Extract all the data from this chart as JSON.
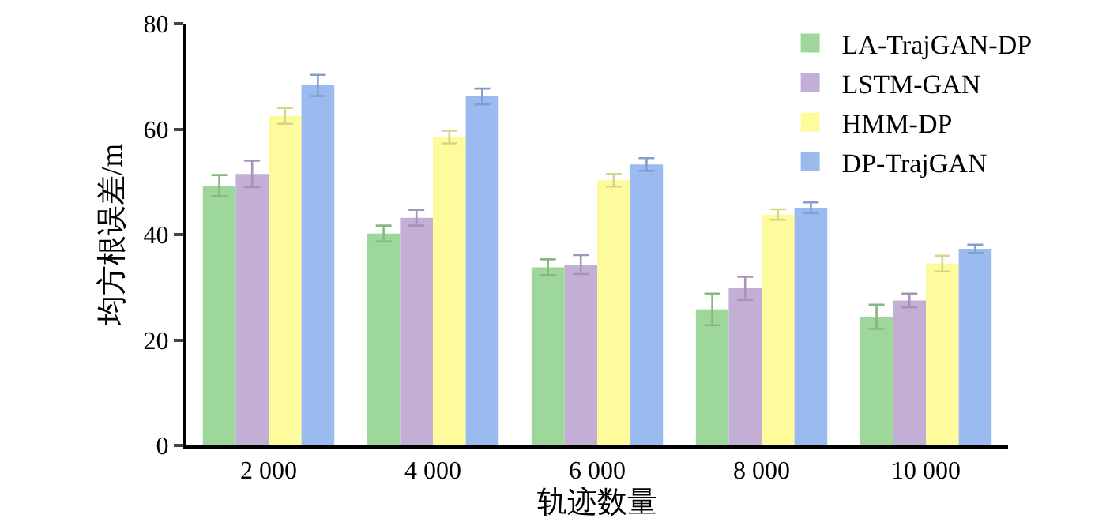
{
  "chart_data": {
    "type": "bar",
    "xlabel": "轨迹数量",
    "ylabel": "均方根误差/m",
    "categories": [
      "2 000",
      "4 000",
      "6 000",
      "8 000",
      "10 000"
    ],
    "series": [
      {
        "name": "LA-TrajGAN-DP",
        "color": "#9ed79a",
        "values": [
          49.3,
          40.2,
          33.8,
          25.8,
          24.4
        ],
        "errors": [
          2,
          1.5,
          1.5,
          3,
          2.3
        ]
      },
      {
        "name": "LSTM-GAN",
        "color": "#c3afd6",
        "values": [
          51.5,
          43.2,
          34.3,
          29.8,
          27.5
        ],
        "errors": [
          2.5,
          1.5,
          1.8,
          2.2,
          1.3
        ]
      },
      {
        "name": "HMM-DP",
        "color": "#fdfb9b",
        "values": [
          62.5,
          58.5,
          50.3,
          43.8,
          34.5
        ],
        "errors": [
          1.5,
          1.2,
          1.2,
          1,
          1.5
        ]
      },
      {
        "name": "DP-TrajGAN",
        "color": "#9bbaf0",
        "values": [
          68.3,
          66.2,
          53.3,
          45.1,
          37.3
        ],
        "errors": [
          2,
          1.5,
          1.2,
          1,
          0.8
        ]
      }
    ],
    "ylim": [
      0,
      80
    ],
    "yticks": [
      0,
      20,
      40,
      60,
      80
    ],
    "legend": "top right"
  }
}
